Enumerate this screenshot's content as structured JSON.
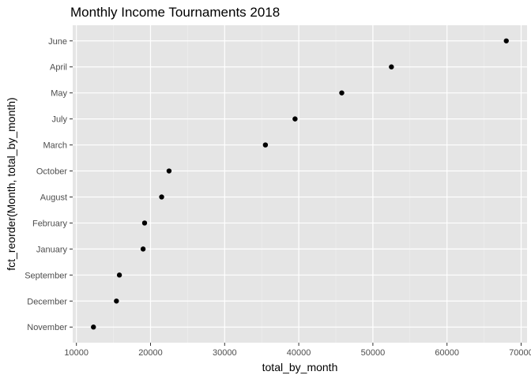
{
  "chart_data": {
    "type": "scatter",
    "title": "Monthly Income Tournaments 2018",
    "xlabel": "total_by_month",
    "ylabel": "fct_reorder(Month, total_by_month)",
    "xlim": [
      9500,
      70800
    ],
    "xticks": [
      10000,
      20000,
      30000,
      40000,
      50000,
      60000,
      70000
    ],
    "xtick_labels": [
      "10000",
      "20000",
      "30000",
      "40000",
      "50000",
      "60000",
      "70000"
    ],
    "categories": [
      "November",
      "December",
      "September",
      "January",
      "February",
      "August",
      "October",
      "March",
      "July",
      "May",
      "April",
      "June"
    ],
    "values": [
      12300,
      15400,
      15800,
      19000,
      19200,
      21500,
      22500,
      35500,
      39500,
      45800,
      52500,
      68000
    ],
    "grid": true,
    "legend": "none"
  },
  "colors": {
    "panel_background": "#e5e5e5",
    "grid_major": "#ffffff",
    "grid_minor": "#f0f0f0",
    "point": "#000000",
    "tick_label": "#4d4d4d",
    "tick_mark": "#333333"
  }
}
